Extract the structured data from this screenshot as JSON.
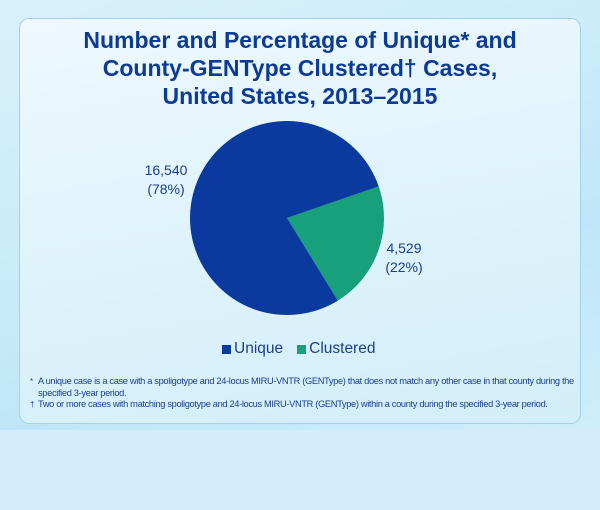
{
  "title_lines": [
    "Number and Percentage of Unique* and",
    "County-GENType Clustered† Cases,",
    "United States, 2013–2015"
  ],
  "chart_data": {
    "type": "pie",
    "title": "Number and Percentage of Unique* and County-GENType Clustered† Cases, United States, 2013–2015",
    "slices": [
      {
        "name": "Unique",
        "value": 16540,
        "percent": 78,
        "label_value": "16,540",
        "label_percent": "(78%)",
        "color": "#0a3a9e"
      },
      {
        "name": "Clustered",
        "value": 4529,
        "percent": 22,
        "label_value": "4,529",
        "label_percent": "(22%)",
        "color": "#17a07a"
      }
    ],
    "legend_placement": "bottom"
  },
  "footnotes": [
    {
      "marker": "*",
      "text": "A unique case is a case with a spoligotype and 24-locus MIRU-VNTR (GENType) that does not match any other case in that county during the specified 3-year period."
    },
    {
      "marker": "†",
      "text": "Two or more cases with matching spoligotype and 24-locus MIRU-VNTR (GENType) within a county during the specified 3-year period."
    }
  ]
}
